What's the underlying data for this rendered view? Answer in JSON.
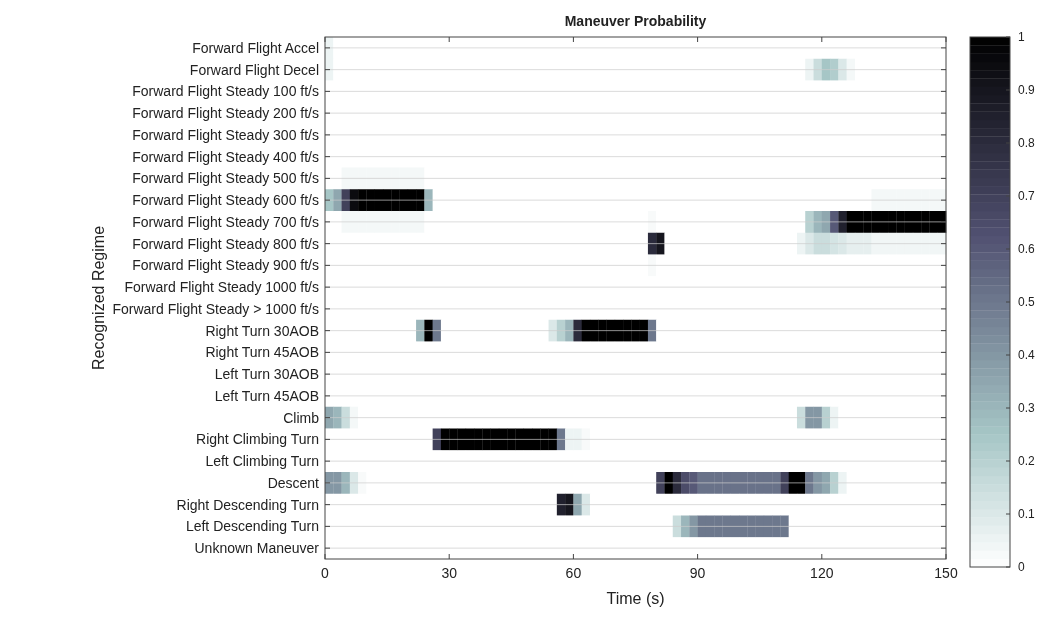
{
  "chart_data": {
    "type": "heatmap",
    "title": "Maneuver Probability",
    "xlabel": "Time (s)",
    "ylabel": "Recognized Regime",
    "x": [
      1,
      3,
      5,
      7,
      9,
      11,
      13,
      15,
      17,
      19,
      21,
      23,
      25,
      27,
      29,
      31,
      33,
      35,
      37,
      39,
      41,
      43,
      45,
      47,
      49,
      51,
      53,
      55,
      57,
      59,
      61,
      63,
      65,
      67,
      69,
      71,
      73,
      75,
      77,
      79,
      81,
      83,
      85,
      87,
      89,
      91,
      93,
      95,
      97,
      99,
      101,
      103,
      105,
      107,
      109,
      111,
      113,
      115,
      117,
      119,
      121,
      123,
      125,
      127,
      129,
      131,
      133,
      135,
      137,
      139,
      141,
      143,
      145,
      147,
      149
    ],
    "xlim": [
      0,
      150
    ],
    "xticks": [
      0,
      30,
      60,
      90,
      120,
      150
    ],
    "y_categories": [
      "Forward Flight Accel",
      "Forward Flight Decel",
      "Forward Flight Steady 100 ft/s",
      "Forward Flight Steady 200 ft/s",
      "Forward Flight Steady 300 ft/s",
      "Forward Flight Steady 400 ft/s",
      "Forward Flight Steady 500 ft/s",
      "Forward Flight Steady 600 ft/s",
      "Forward Flight Steady 700 ft/s",
      "Forward Flight Steady 800 ft/s",
      "Forward Flight Steady 900 ft/s",
      "Forward Flight Steady 1000 ft/s",
      "Forward Flight Steady > 1000 ft/s",
      "Right Turn 30AOB",
      "Right Turn 45AOB",
      "Left Turn 30AOB",
      "Left Turn 45AOB",
      "Climb",
      "Right Climbing Turn",
      "Left Climbing Turn",
      "Descent",
      "Right Descending Turn",
      "Left Descending Turn",
      "Unknown Maneuver"
    ],
    "cells": [
      [
        0.05,
        0,
        0,
        0,
        0,
        0,
        0,
        0,
        0,
        0,
        0,
        0,
        0,
        0,
        0,
        0,
        0,
        0,
        0,
        0,
        0,
        0,
        0,
        0,
        0,
        0,
        0,
        0,
        0,
        0,
        0,
        0,
        0,
        0,
        0,
        0,
        0,
        0,
        0,
        0,
        0,
        0,
        0,
        0,
        0,
        0,
        0,
        0,
        0,
        0,
        0,
        0,
        0,
        0,
        0,
        0,
        0,
        0,
        0,
        0,
        0,
        0,
        0,
        0,
        0,
        0,
        0,
        0,
        0,
        0,
        0,
        0,
        0,
        0,
        0
      ],
      [
        0.05,
        0,
        0,
        0,
        0,
        0,
        0,
        0,
        0,
        0,
        0,
        0,
        0,
        0,
        0,
        0,
        0,
        0,
        0,
        0,
        0,
        0,
        0,
        0,
        0,
        0,
        0,
        0,
        0,
        0,
        0,
        0,
        0,
        0,
        0,
        0,
        0,
        0,
        0,
        0,
        0,
        0,
        0,
        0,
        0,
        0,
        0,
        0,
        0,
        0,
        0,
        0,
        0,
        0,
        0,
        0,
        0,
        0,
        0.05,
        0.15,
        0.25,
        0.22,
        0.1,
        0.03,
        0,
        0,
        0,
        0,
        0,
        0,
        0,
        0,
        0,
        0,
        0
      ],
      [
        0,
        0,
        0,
        0,
        0,
        0,
        0,
        0,
        0,
        0,
        0,
        0,
        0,
        0,
        0,
        0,
        0,
        0,
        0,
        0,
        0,
        0,
        0,
        0,
        0,
        0,
        0,
        0,
        0,
        0,
        0,
        0,
        0,
        0,
        0,
        0,
        0,
        0,
        0,
        0,
        0,
        0,
        0,
        0,
        0,
        0,
        0,
        0,
        0,
        0,
        0,
        0,
        0,
        0,
        0,
        0,
        0,
        0,
        0,
        0,
        0,
        0,
        0,
        0,
        0,
        0,
        0,
        0,
        0,
        0,
        0,
        0,
        0,
        0,
        0
      ],
      [
        0,
        0,
        0,
        0,
        0,
        0,
        0,
        0,
        0,
        0,
        0,
        0,
        0,
        0,
        0,
        0,
        0,
        0,
        0,
        0,
        0,
        0,
        0,
        0,
        0,
        0,
        0,
        0,
        0,
        0,
        0,
        0,
        0,
        0,
        0,
        0,
        0,
        0,
        0,
        0,
        0,
        0,
        0,
        0,
        0,
        0,
        0,
        0,
        0,
        0,
        0,
        0,
        0,
        0,
        0,
        0,
        0,
        0,
        0,
        0,
        0,
        0,
        0,
        0,
        0,
        0,
        0,
        0,
        0,
        0,
        0,
        0,
        0,
        0,
        0
      ],
      [
        0,
        0,
        0,
        0,
        0,
        0,
        0,
        0,
        0,
        0,
        0,
        0,
        0,
        0,
        0,
        0,
        0,
        0,
        0,
        0,
        0,
        0,
        0,
        0,
        0,
        0,
        0,
        0,
        0,
        0,
        0,
        0,
        0,
        0,
        0,
        0,
        0,
        0,
        0,
        0,
        0,
        0,
        0,
        0,
        0,
        0,
        0,
        0,
        0,
        0,
        0,
        0,
        0,
        0,
        0,
        0,
        0,
        0,
        0,
        0,
        0,
        0,
        0,
        0,
        0,
        0,
        0,
        0,
        0,
        0,
        0,
        0,
        0,
        0,
        0
      ],
      [
        0,
        0,
        0,
        0,
        0,
        0,
        0,
        0,
        0,
        0,
        0,
        0,
        0,
        0,
        0,
        0,
        0,
        0,
        0,
        0,
        0,
        0,
        0,
        0,
        0,
        0,
        0,
        0,
        0,
        0,
        0,
        0,
        0,
        0,
        0,
        0,
        0,
        0,
        0,
        0,
        0,
        0,
        0,
        0,
        0,
        0,
        0,
        0,
        0,
        0,
        0,
        0,
        0,
        0,
        0,
        0,
        0,
        0,
        0,
        0,
        0,
        0,
        0,
        0,
        0,
        0,
        0,
        0,
        0,
        0,
        0,
        0,
        0,
        0,
        0
      ],
      [
        0,
        0,
        0.03,
        0.03,
        0.03,
        0.03,
        0.03,
        0.03,
        0.03,
        0.03,
        0.03,
        0.03,
        0,
        0,
        0,
        0,
        0,
        0,
        0,
        0,
        0,
        0,
        0,
        0,
        0,
        0,
        0,
        0,
        0,
        0,
        0,
        0,
        0,
        0,
        0,
        0,
        0,
        0,
        0,
        0,
        0,
        0,
        0,
        0,
        0,
        0,
        0,
        0,
        0,
        0,
        0,
        0,
        0,
        0,
        0,
        0,
        0,
        0,
        0,
        0,
        0,
        0,
        0,
        0,
        0,
        0,
        0,
        0,
        0,
        0,
        0,
        0,
        0,
        0,
        0
      ],
      [
        0.25,
        0.35,
        0.7,
        0.95,
        1,
        1,
        1,
        1,
        1,
        1,
        1,
        1,
        0.3,
        0,
        0,
        0,
        0,
        0,
        0,
        0,
        0,
        0,
        0,
        0,
        0,
        0,
        0,
        0,
        0,
        0,
        0,
        0,
        0,
        0,
        0,
        0,
        0,
        0,
        0,
        0,
        0,
        0,
        0,
        0,
        0,
        0,
        0,
        0,
        0,
        0,
        0,
        0,
        0,
        0,
        0,
        0,
        0,
        0,
        0,
        0,
        0,
        0,
        0,
        0,
        0,
        0,
        0.03,
        0.03,
        0.03,
        0.03,
        0.03,
        0.03,
        0.03,
        0.03,
        0.03
      ],
      [
        0,
        0,
        0.03,
        0.03,
        0.03,
        0.03,
        0.03,
        0.03,
        0.03,
        0.03,
        0.03,
        0.03,
        0,
        0,
        0,
        0,
        0,
        0,
        0,
        0,
        0,
        0,
        0,
        0,
        0,
        0,
        0,
        0,
        0,
        0,
        0,
        0,
        0,
        0,
        0,
        0,
        0,
        0,
        0,
        0.02,
        0,
        0,
        0,
        0,
        0,
        0,
        0,
        0,
        0,
        0,
        0,
        0,
        0,
        0,
        0,
        0,
        0,
        0,
        0.2,
        0.3,
        0.35,
        0.6,
        0.85,
        1,
        1,
        1,
        1,
        1,
        1,
        1,
        1,
        1,
        1,
        1,
        1
      ],
      [
        0,
        0,
        0,
        0,
        0,
        0,
        0,
        0,
        0,
        0,
        0,
        0,
        0,
        0,
        0,
        0,
        0,
        0,
        0,
        0,
        0,
        0,
        0,
        0,
        0,
        0,
        0,
        0,
        0,
        0,
        0,
        0,
        0,
        0,
        0,
        0,
        0,
        0,
        0,
        0.8,
        0.9,
        0,
        0,
        0,
        0,
        0,
        0,
        0,
        0,
        0,
        0,
        0,
        0,
        0,
        0,
        0,
        0,
        0.05,
        0.1,
        0.15,
        0.15,
        0.12,
        0.1,
        0.07,
        0.07,
        0.07,
        0.04,
        0.04,
        0.04,
        0.04,
        0.04,
        0.04,
        0.04,
        0.04,
        0.04
      ],
      [
        0,
        0,
        0,
        0,
        0,
        0,
        0,
        0,
        0,
        0,
        0,
        0,
        0,
        0,
        0,
        0,
        0,
        0,
        0,
        0,
        0,
        0,
        0,
        0,
        0,
        0,
        0,
        0,
        0,
        0,
        0,
        0,
        0,
        0,
        0,
        0,
        0,
        0,
        0,
        0.02,
        0,
        0,
        0,
        0,
        0,
        0,
        0,
        0,
        0,
        0,
        0,
        0,
        0,
        0,
        0,
        0,
        0,
        0,
        0,
        0,
        0,
        0,
        0,
        0,
        0,
        0,
        0,
        0,
        0,
        0,
        0,
        0,
        0,
        0,
        0
      ],
      [
        0,
        0,
        0,
        0,
        0,
        0,
        0,
        0,
        0,
        0,
        0,
        0,
        0,
        0,
        0,
        0,
        0,
        0,
        0,
        0,
        0,
        0,
        0,
        0,
        0,
        0,
        0,
        0,
        0,
        0,
        0,
        0,
        0,
        0,
        0,
        0,
        0,
        0,
        0,
        0,
        0,
        0,
        0,
        0,
        0,
        0,
        0,
        0,
        0,
        0,
        0,
        0,
        0,
        0,
        0,
        0,
        0,
        0,
        0,
        0,
        0,
        0,
        0,
        0,
        0,
        0,
        0,
        0,
        0,
        0,
        0,
        0,
        0,
        0,
        0
      ],
      [
        0,
        0,
        0,
        0,
        0,
        0,
        0,
        0,
        0,
        0,
        0,
        0,
        0,
        0,
        0,
        0,
        0,
        0,
        0,
        0,
        0,
        0,
        0,
        0,
        0,
        0,
        0,
        0,
        0,
        0,
        0,
        0,
        0,
        0,
        0,
        0,
        0,
        0,
        0,
        0,
        0,
        0,
        0,
        0,
        0,
        0,
        0,
        0,
        0,
        0,
        0,
        0,
        0,
        0,
        0,
        0,
        0,
        0,
        0,
        0,
        0,
        0,
        0,
        0,
        0,
        0,
        0,
        0,
        0,
        0,
        0,
        0,
        0,
        0,
        0
      ],
      [
        0,
        0,
        0,
        0,
        0,
        0,
        0,
        0,
        0,
        0,
        0,
        0.3,
        1,
        0.5,
        0,
        0,
        0,
        0,
        0,
        0,
        0,
        0,
        0,
        0,
        0,
        0,
        0,
        0.1,
        0.2,
        0.3,
        0.8,
        1,
        1,
        1,
        1,
        1,
        1,
        1,
        1,
        0.5,
        0,
        0,
        0,
        0,
        0,
        0,
        0,
        0,
        0,
        0,
        0,
        0,
        0,
        0,
        0,
        0,
        0,
        0,
        0,
        0,
        0,
        0,
        0,
        0,
        0,
        0,
        0,
        0,
        0,
        0,
        0,
        0,
        0,
        0,
        0
      ],
      [
        0,
        0,
        0,
        0,
        0,
        0,
        0,
        0,
        0,
        0,
        0,
        0,
        0,
        0,
        0,
        0,
        0,
        0,
        0,
        0,
        0,
        0,
        0,
        0,
        0,
        0,
        0,
        0,
        0,
        0,
        0,
        0,
        0,
        0,
        0,
        0,
        0,
        0,
        0,
        0,
        0,
        0,
        0,
        0,
        0,
        0,
        0,
        0,
        0,
        0,
        0,
        0,
        0,
        0,
        0,
        0,
        0,
        0,
        0,
        0,
        0,
        0,
        0,
        0,
        0,
        0,
        0,
        0,
        0,
        0,
        0,
        0,
        0,
        0,
        0
      ],
      [
        0,
        0,
        0,
        0,
        0,
        0,
        0,
        0,
        0,
        0,
        0,
        0,
        0,
        0,
        0,
        0,
        0,
        0,
        0,
        0,
        0,
        0,
        0,
        0,
        0,
        0,
        0,
        0,
        0,
        0,
        0,
        0,
        0,
        0,
        0,
        0,
        0,
        0,
        0,
        0,
        0,
        0,
        0,
        0,
        0,
        0,
        0,
        0,
        0,
        0,
        0,
        0,
        0,
        0,
        0,
        0,
        0,
        0,
        0,
        0,
        0,
        0,
        0,
        0,
        0,
        0,
        0,
        0,
        0,
        0,
        0,
        0,
        0,
        0,
        0
      ],
      [
        0,
        0,
        0,
        0,
        0,
        0,
        0,
        0,
        0,
        0,
        0,
        0,
        0,
        0,
        0,
        0,
        0,
        0,
        0,
        0,
        0,
        0,
        0,
        0,
        0,
        0,
        0,
        0,
        0,
        0,
        0,
        0,
        0,
        0,
        0,
        0,
        0,
        0,
        0,
        0,
        0,
        0,
        0,
        0,
        0,
        0,
        0,
        0,
        0,
        0,
        0,
        0,
        0,
        0,
        0,
        0,
        0,
        0,
        0,
        0,
        0,
        0,
        0,
        0,
        0,
        0,
        0,
        0,
        0,
        0,
        0,
        0,
        0,
        0,
        0
      ],
      [
        0.35,
        0.3,
        0.15,
        0.03,
        0,
        0,
        0,
        0,
        0,
        0,
        0,
        0,
        0,
        0,
        0,
        0,
        0,
        0,
        0,
        0,
        0,
        0,
        0,
        0,
        0,
        0,
        0,
        0,
        0,
        0,
        0,
        0,
        0,
        0,
        0,
        0,
        0,
        0,
        0,
        0,
        0,
        0,
        0,
        0,
        0,
        0,
        0,
        0,
        0,
        0,
        0,
        0,
        0,
        0,
        0,
        0,
        0,
        0.15,
        0.4,
        0.4,
        0.2,
        0.05,
        0,
        0,
        0,
        0,
        0,
        0,
        0,
        0,
        0,
        0,
        0,
        0,
        0
      ],
      [
        0,
        0,
        0,
        0,
        0,
        0,
        0,
        0,
        0,
        0,
        0,
        0,
        0,
        0.7,
        1,
        1,
        1,
        1,
        1,
        1,
        1,
        1,
        1,
        1,
        1,
        1,
        1,
        1,
        0.5,
        0.05,
        0.05,
        0.02,
        0,
        0,
        0,
        0,
        0,
        0,
        0,
        0,
        0,
        0,
        0,
        0,
        0,
        0,
        0,
        0,
        0,
        0,
        0,
        0,
        0,
        0,
        0,
        0,
        0,
        0,
        0,
        0,
        0,
        0,
        0,
        0,
        0,
        0,
        0,
        0,
        0,
        0,
        0,
        0,
        0,
        0,
        0
      ],
      [
        0,
        0,
        0,
        0,
        0,
        0,
        0,
        0,
        0,
        0,
        0,
        0,
        0,
        0,
        0,
        0,
        0,
        0,
        0,
        0,
        0,
        0,
        0,
        0,
        0,
        0,
        0,
        0,
        0,
        0,
        0,
        0,
        0,
        0,
        0,
        0,
        0,
        0,
        0,
        0,
        0,
        0,
        0,
        0,
        0,
        0,
        0,
        0,
        0,
        0,
        0,
        0,
        0,
        0,
        0,
        0,
        0,
        0,
        0,
        0,
        0,
        0,
        0,
        0,
        0,
        0,
        0,
        0,
        0,
        0,
        0,
        0,
        0,
        0,
        0
      ],
      [
        0.4,
        0.4,
        0.3,
        0.1,
        0.02,
        0,
        0,
        0,
        0,
        0,
        0,
        0,
        0,
        0,
        0,
        0,
        0,
        0,
        0,
        0,
        0,
        0,
        0,
        0,
        0,
        0,
        0,
        0,
        0,
        0,
        0,
        0,
        0,
        0,
        0,
        0,
        0,
        0,
        0,
        0,
        0.7,
        1,
        0.8,
        0.65,
        0.6,
        0.52,
        0.52,
        0.52,
        0.52,
        0.52,
        0.52,
        0.52,
        0.52,
        0.52,
        0.52,
        0.7,
        1,
        1,
        0.5,
        0.4,
        0.35,
        0.2,
        0.05,
        0,
        0,
        0,
        0,
        0,
        0,
        0,
        0,
        0,
        0,
        0,
        0
      ],
      [
        0,
        0,
        0,
        0,
        0,
        0,
        0,
        0,
        0,
        0,
        0,
        0,
        0,
        0,
        0,
        0,
        0,
        0,
        0,
        0,
        0,
        0,
        0,
        0,
        0,
        0,
        0,
        0,
        0.85,
        0.9,
        0.35,
        0.1,
        0,
        0,
        0,
        0,
        0,
        0,
        0,
        0,
        0,
        0,
        0,
        0,
        0,
        0,
        0,
        0,
        0,
        0,
        0,
        0,
        0,
        0,
        0,
        0,
        0,
        0,
        0,
        0,
        0,
        0,
        0,
        0,
        0,
        0,
        0,
        0,
        0,
        0,
        0,
        0,
        0,
        0,
        0
      ],
      [
        0,
        0,
        0,
        0,
        0,
        0,
        0,
        0,
        0,
        0,
        0,
        0,
        0,
        0,
        0,
        0,
        0,
        0,
        0,
        0,
        0,
        0,
        0,
        0,
        0,
        0,
        0,
        0,
        0,
        0,
        0,
        0,
        0,
        0,
        0,
        0,
        0,
        0,
        0,
        0,
        0,
        0,
        0.15,
        0.3,
        0.4,
        0.5,
        0.5,
        0.5,
        0.5,
        0.5,
        0.5,
        0.5,
        0.5,
        0.5,
        0.5,
        0.5,
        0,
        0,
        0,
        0,
        0,
        0,
        0,
        0,
        0,
        0,
        0,
        0,
        0,
        0,
        0,
        0,
        0,
        0,
        0
      ],
      [
        0,
        0,
        0,
        0,
        0,
        0,
        0,
        0,
        0,
        0,
        0,
        0,
        0,
        0,
        0,
        0,
        0,
        0,
        0,
        0,
        0,
        0,
        0,
        0,
        0,
        0,
        0,
        0,
        0,
        0,
        0,
        0,
        0,
        0,
        0,
        0,
        0,
        0,
        0,
        0,
        0,
        0,
        0,
        0,
        0,
        0,
        0,
        0,
        0,
        0,
        0,
        0,
        0,
        0,
        0,
        0,
        0,
        0,
        0,
        0,
        0,
        0,
        0,
        0,
        0,
        0,
        0,
        0,
        0,
        0,
        0,
        0,
        0,
        0,
        0
      ]
    ],
    "clim": [
      0,
      1
    ],
    "cticks": [
      0,
      0.1,
      0.2,
      0.3,
      0.4,
      0.5,
      0.6,
      0.7,
      0.8,
      0.9,
      1
    ],
    "grid": "y"
  }
}
